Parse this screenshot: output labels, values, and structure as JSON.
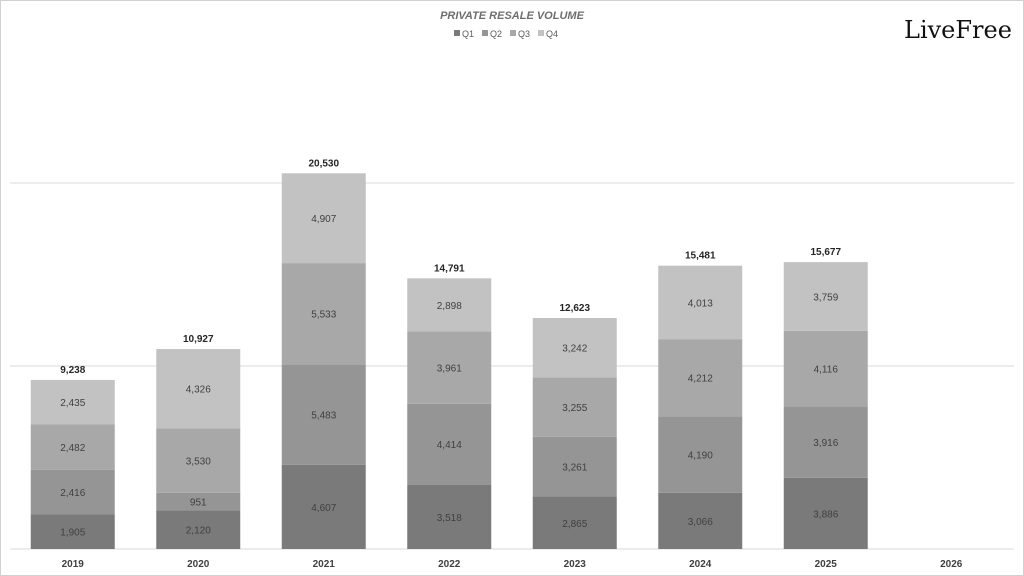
{
  "brand": {
    "name": "LiveFree"
  },
  "chart_data": {
    "type": "bar",
    "stacked": true,
    "title": "PRIVATE RESALE VOLUME",
    "categories": [
      "2019",
      "2020",
      "2021",
      "2022",
      "2023",
      "2024",
      "2025",
      "2026"
    ],
    "series": [
      {
        "name": "Q1",
        "color": "#7a7a7a",
        "values": [
          1905,
          2120,
          4607,
          3518,
          2865,
          3066,
          3886,
          null
        ]
      },
      {
        "name": "Q2",
        "color": "#959595",
        "values": [
          2416,
          951,
          5483,
          4414,
          3261,
          4190,
          3916,
          null
        ]
      },
      {
        "name": "Q3",
        "color": "#a8a8a8",
        "values": [
          2482,
          3530,
          5533,
          3961,
          3255,
          4212,
          4116,
          null
        ]
      },
      {
        "name": "Q4",
        "color": "#c2c2c2",
        "values": [
          2435,
          4326,
          4907,
          2898,
          3242,
          4013,
          3759,
          null
        ]
      }
    ],
    "totals": [
      "9,238",
      "10,927",
      "20,530",
      "14,791",
      "12,623",
      "15,481",
      "15,677",
      ""
    ],
    "ylim": [
      0,
      30000
    ],
    "grid": true,
    "legend": "top-center",
    "data_labels": true
  }
}
